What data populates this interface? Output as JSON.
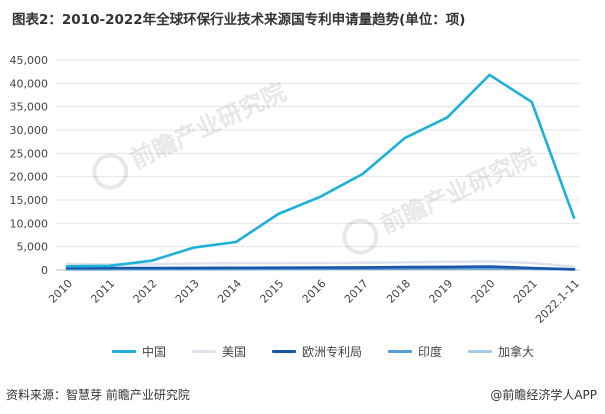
{
  "title": "图表2：2010-2022年全球环保行业技术来源国专利申请量趋势(单位：项)",
  "footer": {
    "source": "资料来源：智慧芽 前瞻产业研究院",
    "credit": "@前瞻经济学人APP"
  },
  "watermark": {
    "text": "前瞻产业研究院"
  },
  "chart_data": {
    "type": "line",
    "categories": [
      "2010",
      "2011",
      "2012",
      "2013",
      "2014",
      "2015",
      "2016",
      "2017",
      "2018",
      "2019",
      "2020",
      "2021",
      "2022.1-11"
    ],
    "ylim": [
      0,
      45000
    ],
    "yticks": [
      0,
      5000,
      10000,
      15000,
      20000,
      25000,
      30000,
      35000,
      40000,
      45000
    ],
    "ytick_labels": [
      "0",
      "5,000",
      "10,000",
      "15,000",
      "20,000",
      "25,000",
      "30,000",
      "35,000",
      "40,000",
      "45,000"
    ],
    "grid": true,
    "legend_position": "bottom",
    "series": [
      {
        "name": "中国",
        "color": "#1fb0d8",
        "width": 2.6,
        "values": [
          800,
          900,
          2000,
          4800,
          6000,
          12000,
          15700,
          20600,
          28300,
          32700,
          41800,
          36000,
          11200
        ]
      },
      {
        "name": "美国",
        "color": "#dde4ee",
        "width": 2.6,
        "values": [
          1300,
          1200,
          1250,
          1400,
          1450,
          1450,
          1500,
          1550,
          1650,
          1750,
          1850,
          1500,
          700
        ]
      },
      {
        "name": "欧洲专利局",
        "color": "#1a56a8",
        "width": 2.6,
        "values": [
          400,
          420,
          430,
          460,
          470,
          490,
          520,
          560,
          620,
          660,
          740,
          400,
          150
        ]
      },
      {
        "name": "印度",
        "color": "#5b9bd5",
        "width": 2.6,
        "values": [
          150,
          160,
          180,
          200,
          220,
          240,
          260,
          280,
          300,
          330,
          360,
          300,
          120
        ]
      },
      {
        "name": "加拿大",
        "color": "#a8c8ea",
        "width": 2.6,
        "values": [
          300,
          300,
          310,
          320,
          330,
          340,
          350,
          360,
          380,
          400,
          420,
          350,
          120
        ]
      }
    ]
  }
}
